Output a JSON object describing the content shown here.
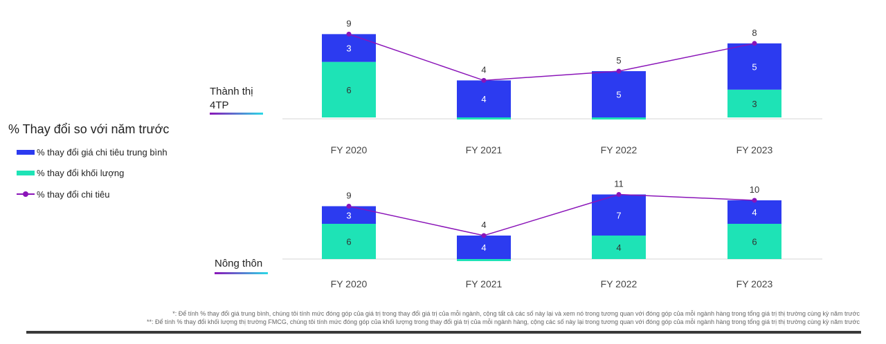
{
  "legend": {
    "title": "% Thay đổi so với năm trước",
    "items": [
      {
        "label": "% thay đổi giá chi tiêu trung bình",
        "kind": "bar",
        "color": "#2c3bf0"
      },
      {
        "label": "% thay đổi khối lượng",
        "kind": "bar",
        "color": "#1ee3b6"
      },
      {
        "label": "% thay đổi chi tiêu",
        "kind": "line",
        "color": "#8a14b8"
      }
    ]
  },
  "panels": [
    {
      "label_line1": "Thành thị",
      "label_line2": "4TP"
    },
    {
      "label_line1": "Nông thôn",
      "label_line2": ""
    }
  ],
  "colors": {
    "price": "#2c3bf0",
    "volume": "#1ee3b6",
    "spend": "#8a14b8",
    "underline_start": "#8a14b8",
    "underline_end": "#2bd9e6"
  },
  "chart_data": [
    {
      "type": "bar",
      "stacked": true,
      "segment": "Thành thị 4TP",
      "categories": [
        "FY 2020",
        "FY 2021",
        "FY 2022",
        "FY 2023"
      ],
      "series": [
        {
          "name": "% thay đổi khối lượng",
          "values": [
            6,
            0,
            0,
            3
          ],
          "labels": [
            "6",
            "",
            "",
            "3"
          ]
        },
        {
          "name": "% thay đổi giá chi tiêu trung bình",
          "values": [
            3,
            4,
            5,
            5
          ],
          "labels": [
            "3",
            "4",
            "5",
            "5"
          ]
        },
        {
          "name": "% thay đổi chi tiêu",
          "type": "line",
          "values": [
            9,
            4,
            5,
            8
          ],
          "labels": [
            "9",
            "4",
            "5",
            "8"
          ]
        }
      ]
    },
    {
      "type": "bar",
      "stacked": true,
      "segment": "Nông thôn",
      "categories": [
        "FY 2020",
        "FY 2021",
        "FY 2022",
        "FY 2023"
      ],
      "series": [
        {
          "name": "% thay đổi khối lượng",
          "values": [
            6,
            0,
            4,
            6
          ],
          "labels": [
            "6",
            "",
            "4",
            "6"
          ]
        },
        {
          "name": "% thay đổi giá chi tiêu trung bình",
          "values": [
            3,
            4,
            7,
            4
          ],
          "labels": [
            "3",
            "4",
            "7",
            "4"
          ]
        },
        {
          "name": "% thay đổi chi tiêu",
          "type": "line",
          "values": [
            9,
            4,
            11,
            10
          ],
          "labels": [
            "9",
            "4",
            "11",
            "10"
          ]
        }
      ]
    }
  ],
  "footnotes": [
    "*: Để tính % thay đổi giá trung bình, chúng tôi tính mức đóng góp của giá trị trong thay đổi giá trị của mỗi ngành, cộng tất cả các số này lại và xem nó trong tương quan với đóng góp của mỗi ngành hàng trong tổng giá trị thị trường cùng kỳ năm trước",
    "**: Để tính % thay đổi khối lượng thị trường FMCG, chúng tôi tính mức đóng góp của khối lượng trong thay đổi giá trị của mỗi ngành hàng, cộng các số này lại trong tương quan với đóng góp của mỗi ngành hàng trong tổng giá trị thị trường cùng kỳ năm trước"
  ]
}
